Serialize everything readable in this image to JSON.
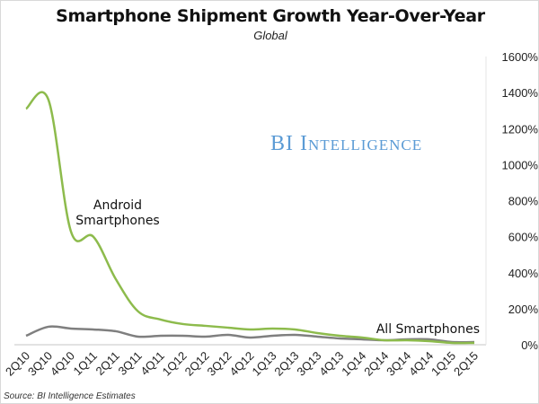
{
  "chart_data": {
    "type": "line",
    "title": "Smartphone Shipment Growth Year-Over-Year",
    "subtitle": "Global",
    "source": "Source: BI Intelligence Estimates",
    "watermark": "BI Intelligence",
    "categories": [
      "2Q10",
      "3Q10",
      "4Q10",
      "1Q11",
      "2Q11",
      "3Q11",
      "4Q11",
      "1Q12",
      "2Q12",
      "3Q12",
      "4Q12",
      "1Q13",
      "2Q13",
      "3Q13",
      "4Q13",
      "1Q14",
      "2Q14",
      "3Q14",
      "4Q14",
      "1Q15",
      "2Q15"
    ],
    "series": [
      {
        "name": "Android Smartphones",
        "color": "#8dbb4c",
        "values": [
          1310,
          1360,
          630,
          600,
          365,
          185,
          140,
          115,
          105,
          95,
          85,
          90,
          85,
          65,
          50,
          40,
          25,
          25,
          20,
          10,
          10
        ]
      },
      {
        "name": "All Smartphones",
        "color": "#7f7f7f",
        "values": [
          50,
          100,
          90,
          85,
          75,
          45,
          50,
          50,
          45,
          55,
          40,
          50,
          55,
          45,
          35,
          30,
          25,
          30,
          30,
          15,
          15
        ]
      }
    ],
    "yaxis": {
      "position": "right",
      "min": 0,
      "max": 1600,
      "ticks": [
        "0%",
        "200%",
        "400%",
        "600%",
        "800%",
        "1000%",
        "1200%",
        "1400%",
        "1600%"
      ]
    },
    "grid": false
  }
}
